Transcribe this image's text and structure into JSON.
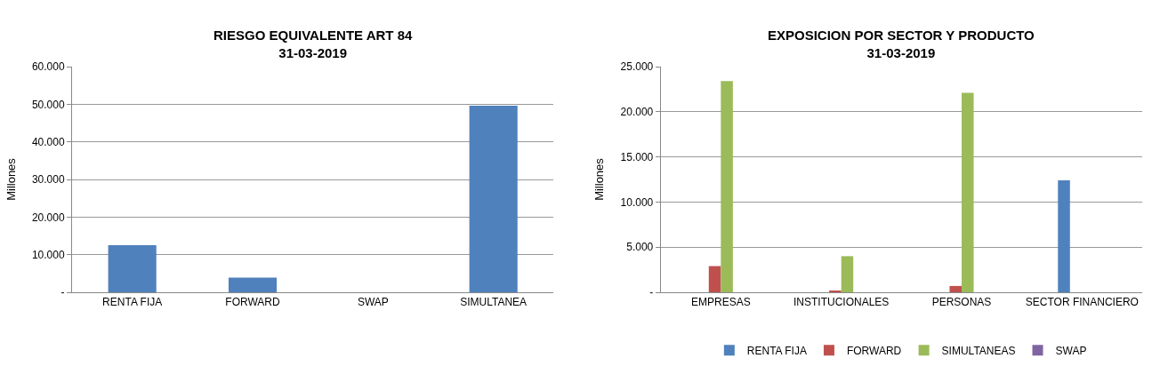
{
  "chart_data": [
    {
      "type": "bar",
      "title": "RIESGO EQUIVALENTE ART 84\n31-03-2019",
      "ylabel": "Millones",
      "categories": [
        "RENTA FIJA",
        "FORWARD",
        "SWAP",
        "SIMULTANEA"
      ],
      "series": [
        {
          "color": "#4f81bd",
          "values": [
            12500,
            3900,
            null,
            49600
          ]
        }
      ],
      "ylim": [
        0,
        60000
      ],
      "yticks": [
        {
          "value": 0,
          "label": "-"
        },
        {
          "value": 10000,
          "label": "10.000"
        },
        {
          "value": 20000,
          "label": "20.000"
        },
        {
          "value": 30000,
          "label": "30.000"
        },
        {
          "value": 40000,
          "label": "40.000"
        },
        {
          "value": 50000,
          "label": "50.000"
        },
        {
          "value": 60000,
          "label": "60.000"
        }
      ],
      "grid": "y",
      "legend": false
    },
    {
      "type": "bar",
      "title": "EXPOSICION POR SECTOR Y PRODUCTO\n31-03-2019",
      "ylabel": "Millones",
      "categories": [
        "EMPRESAS",
        "INSTITUCIONALES",
        "PERSONAS",
        "SECTOR FINANCIERO"
      ],
      "series": [
        {
          "name": "RENTA FIJA",
          "color": "#4f81bd",
          "values": [
            null,
            null,
            null,
            12400
          ]
        },
        {
          "name": "FORWARD",
          "color": "#c0504d",
          "values": [
            2900,
            100,
            700,
            null
          ]
        },
        {
          "name": "SIMULTANEAS",
          "color": "#9bbb59",
          "values": [
            23400,
            4000,
            22100,
            null
          ]
        },
        {
          "name": "SWAP",
          "color": "#8064a2",
          "values": [
            null,
            null,
            null,
            null
          ]
        }
      ],
      "ylim": [
        0,
        25000
      ],
      "yticks": [
        {
          "value": 0,
          "label": "-"
        },
        {
          "value": 5000,
          "label": "5.000"
        },
        {
          "value": 10000,
          "label": "10.000"
        },
        {
          "value": 15000,
          "label": "15.000"
        },
        {
          "value": 20000,
          "label": "20.000"
        },
        {
          "value": 25000,
          "label": "25.000"
        }
      ],
      "grid": "y",
      "legend": "bottom"
    }
  ]
}
